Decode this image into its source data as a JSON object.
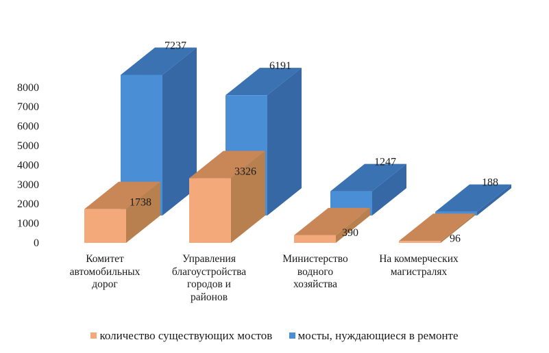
{
  "chart_data": {
    "type": "bar",
    "variant": "3d-clustered-column",
    "title": "",
    "xlabel": "",
    "ylabel": "",
    "ylim": [
      0,
      8000
    ],
    "yticks": [
      "0",
      "1000",
      "2000",
      "3000",
      "4000",
      "5000",
      "6000",
      "7000",
      "8000"
    ],
    "grid": false,
    "legend_position": "bottom",
    "categories": [
      "Комитет автомобильных дорог",
      "Управления благоустройства городов и районов",
      "Министерство водного хозяйства",
      "На коммерческих магистралях"
    ],
    "category_lines": [
      [
        "Комитет",
        "автомобильных",
        "дорог"
      ],
      [
        "Управления",
        "благоустройства",
        "городов и",
        "районов"
      ],
      [
        "Министерство",
        "водного",
        "хозяйства"
      ],
      [
        "На коммерческих",
        "магистралях"
      ]
    ],
    "series": [
      {
        "name": "количество существующих мостов",
        "color": "#F4A97A",
        "values": [
          1738,
          3326,
          390,
          96
        ]
      },
      {
        "name": "мосты, нуждающиеся в ремонте",
        "color": "#4A8FD6",
        "values": [
          7237,
          6191,
          1247,
          188
        ]
      }
    ],
    "data_labels": [
      "1738",
      "3326",
      "390",
      "96",
      "7237",
      "6191",
      "1247",
      "188"
    ]
  },
  "legend": {
    "items": [
      {
        "label": "количество существующих мостов",
        "color": "#F4A97A"
      },
      {
        "label": "мосты, нуждающиеся в ремонте",
        "color": "#4A8FD6"
      }
    ]
  }
}
